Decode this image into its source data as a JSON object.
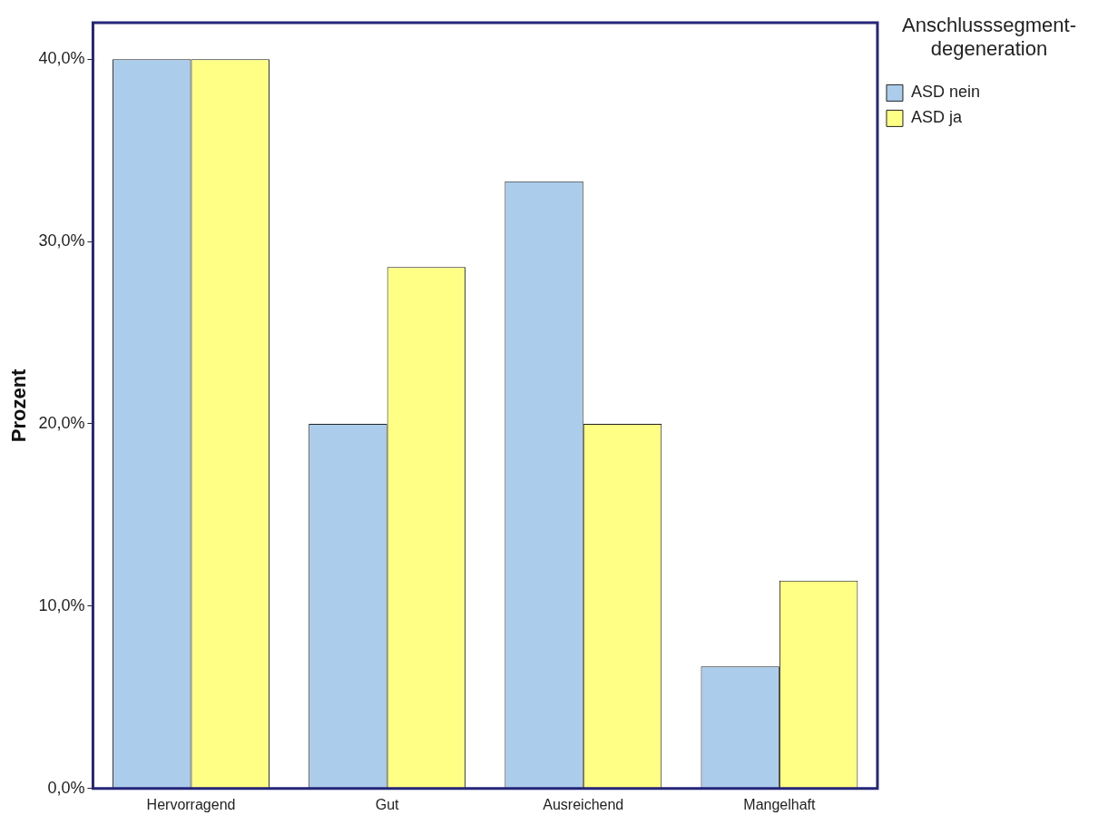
{
  "chart_data": {
    "type": "bar",
    "categories": [
      "Hervorragend",
      "Gut",
      "Ausreichend",
      "Mangelhaft"
    ],
    "series": [
      {
        "name": "ASD nein",
        "color": "#abcdeb",
        "values": [
          40,
          20,
          33.3,
          6.7
        ]
      },
      {
        "name": "ASD ja",
        "color": "#ffff85",
        "values": [
          40,
          28.6,
          20,
          11.4
        ]
      }
    ],
    "ylabel": "Prozent",
    "legend_title": "Anschlusssegment-degeneration",
    "legend": "top right",
    "ylim": [
      0,
      42
    ],
    "yticks": [
      {
        "value": 0,
        "label": "0,0%"
      },
      {
        "value": 10,
        "label": "10,0%"
      },
      {
        "value": 20,
        "label": "20,0%"
      },
      {
        "value": 30,
        "label": "30,0%"
      },
      {
        "value": 40,
        "label": "40,0%"
      }
    ],
    "grid": false
  }
}
